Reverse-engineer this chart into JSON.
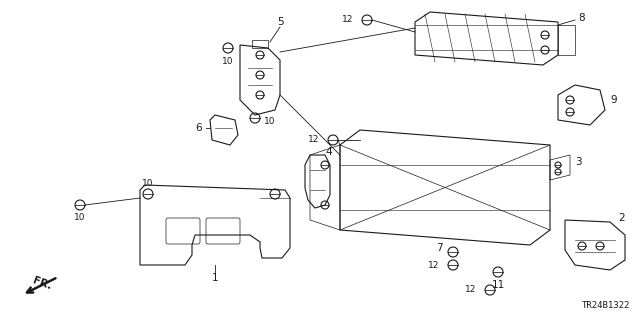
{
  "diagram_code": "TR24B1322",
  "background_color": "#ffffff",
  "line_color": "#1a1a1a",
  "text_color": "#1a1a1a",
  "figsize": [
    6.4,
    3.19
  ],
  "dpi": 100
}
